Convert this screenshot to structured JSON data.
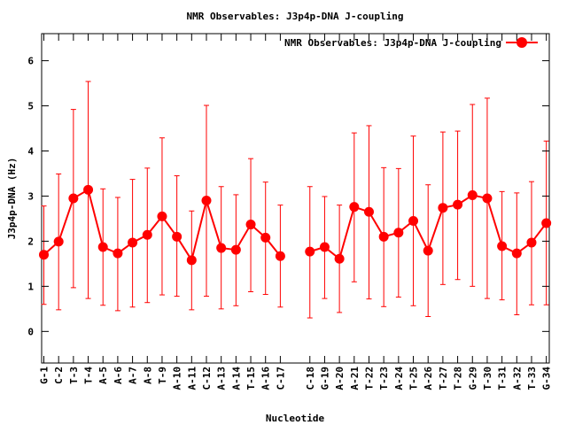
{
  "chart_data": {
    "type": "line",
    "title": "NMR Observables: J3p4p-DNA J-coupling",
    "xlabel": "Nucleotide",
    "ylabel": "J3p4p-DNA (Hz)",
    "ylim": [
      -0.7,
      6.6
    ],
    "yticks": [
      0,
      1,
      2,
      3,
      4,
      5,
      6
    ],
    "grid": false,
    "legend": {
      "placement": "top-right",
      "label": "NMR Observables: J3p4p-DNA J-coupling"
    },
    "color": "#ff0000",
    "x_positions": [
      1,
      2,
      3,
      4,
      5,
      6,
      7,
      8,
      9,
      10,
      11,
      12,
      13,
      14,
      15,
      16,
      17,
      19,
      20,
      21,
      22,
      23,
      24,
      25,
      26,
      27,
      28,
      29,
      30,
      31,
      32,
      33,
      34,
      35
    ],
    "xlim": [
      0.85,
      35.2
    ],
    "categories": [
      "G-1",
      "C-2",
      "T-3",
      "T-4",
      "A-5",
      "A-6",
      "A-7",
      "A-8",
      "T-9",
      "A-10",
      "A-11",
      "C-12",
      "A-13",
      "A-14",
      "T-15",
      "A-16",
      "C-17",
      "C-18",
      "G-19",
      "A-20",
      "A-21",
      "T-22",
      "T-23",
      "A-24",
      "T-25",
      "A-26",
      "T-27",
      "T-28",
      "G-29",
      "T-30",
      "T-31",
      "A-32",
      "T-33",
      "G-34"
    ],
    "series": [
      {
        "segments": [
          [
            0,
            16
          ],
          [
            17,
            33
          ]
        ],
        "values": [
          1.7,
          1.99,
          2.95,
          3.14,
          1.87,
          1.73,
          1.97,
          2.14,
          2.55,
          2.1,
          1.58,
          2.9,
          1.85,
          1.81,
          2.37,
          2.08,
          1.67,
          1.77,
          1.87,
          1.61,
          2.76,
          2.65,
          2.1,
          2.19,
          2.45,
          1.79,
          2.74,
          2.81,
          3.02,
          2.95,
          1.89,
          1.73,
          1.97,
          2.4
        ],
        "err_low": [
          0.6,
          0.48,
          0.97,
          0.73,
          0.58,
          0.46,
          0.54,
          0.64,
          0.81,
          0.78,
          0.48,
          0.78,
          0.5,
          0.57,
          0.88,
          0.82,
          0.54,
          0.3,
          0.73,
          0.42,
          1.1,
          0.72,
          0.55,
          0.76,
          0.57,
          0.33,
          1.04,
          1.15,
          1.0,
          0.73,
          0.7,
          0.37,
          0.59,
          0.59
        ],
        "err_high": [
          2.78,
          3.49,
          4.92,
          5.54,
          3.16,
          2.97,
          3.37,
          3.62,
          4.29,
          3.45,
          2.67,
          5.01,
          3.21,
          3.03,
          3.83,
          3.31,
          2.8,
          3.21,
          2.99,
          2.8,
          4.4,
          4.56,
          3.63,
          3.61,
          4.33,
          3.25,
          4.42,
          4.44,
          5.03,
          5.17,
          3.1,
          3.07,
          3.32,
          4.22
        ]
      }
    ]
  }
}
